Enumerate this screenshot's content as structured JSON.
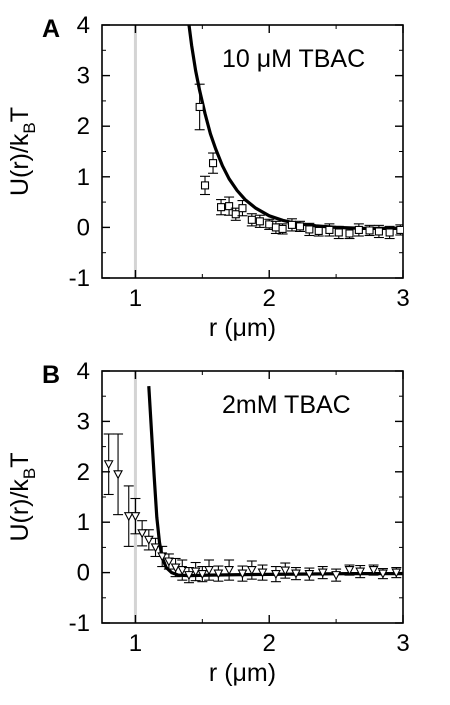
{
  "chart_data": [
    {
      "type": "scatter",
      "panel_label": "A",
      "annotation": "10 μM TBAC",
      "xlabel": "r (μm)",
      "ylabel_main": "U(r)/k",
      "ylabel_sub": "B",
      "ylabel_end": "T",
      "xlim": [
        0.75,
        3.0
      ],
      "ylim": [
        -1,
        4
      ],
      "xticks": [
        "1",
        "2",
        "3"
      ],
      "yticks": [
        "-1",
        "0",
        "1",
        "2",
        "3",
        "4"
      ],
      "reference_line_x": 1.0,
      "marker": "square",
      "series": [
        {
          "kind": "points",
          "x": [
            1.48,
            1.52,
            1.58,
            1.64,
            1.7,
            1.75,
            1.8,
            1.87,
            1.93,
            2.0,
            2.05,
            2.1,
            2.17,
            2.23,
            2.3,
            2.37,
            2.45,
            2.52,
            2.6,
            2.67,
            2.75,
            2.82,
            2.9,
            2.98
          ],
          "y": [
            2.38,
            0.83,
            1.27,
            0.4,
            0.42,
            0.26,
            0.38,
            0.15,
            0.12,
            0.06,
            0.0,
            -0.03,
            0.05,
            0.02,
            -0.04,
            -0.07,
            -0.05,
            -0.1,
            -0.12,
            -0.05,
            -0.06,
            -0.08,
            -0.1,
            -0.05
          ],
          "err": [
            0.45,
            0.18,
            0.2,
            0.15,
            0.18,
            0.12,
            0.15,
            0.12,
            0.12,
            0.1,
            0.12,
            0.1,
            0.12,
            0.1,
            0.12,
            0.1,
            0.12,
            0.12,
            0.1,
            0.12,
            0.1,
            0.12,
            0.12,
            0.1
          ]
        },
        {
          "kind": "fit",
          "x": [
            1.4,
            1.42,
            1.45,
            1.48,
            1.52,
            1.56,
            1.6,
            1.65,
            1.7,
            1.76,
            1.82,
            1.9,
            2.0,
            2.1,
            2.2,
            2.35,
            2.5,
            2.7,
            2.9,
            3.0
          ],
          "y": [
            4.0,
            3.6,
            3.1,
            2.7,
            2.25,
            1.85,
            1.55,
            1.22,
            0.96,
            0.73,
            0.55,
            0.38,
            0.23,
            0.14,
            0.08,
            0.03,
            0.0,
            -0.02,
            -0.02,
            -0.02
          ]
        }
      ]
    },
    {
      "type": "scatter",
      "panel_label": "B",
      "annotation": "2mM TBAC",
      "xlabel": "r (μm)",
      "ylabel_main": "U(r)/k",
      "ylabel_sub": "B",
      "ylabel_end": "T",
      "xlim": [
        0.75,
        3.0
      ],
      "ylim": [
        -1,
        4
      ],
      "xticks": [
        "1",
        "2",
        "3"
      ],
      "yticks": [
        "-1",
        "0",
        "1",
        "2",
        "3",
        "4"
      ],
      "reference_line_x": 1.0,
      "marker": "triangle-down",
      "series": [
        {
          "kind": "points",
          "x": [
            0.8,
            0.87,
            0.95,
            1.0,
            1.05,
            1.1,
            1.15,
            1.2,
            1.25,
            1.3,
            1.35,
            1.4,
            1.45,
            1.5,
            1.55,
            1.62,
            1.7,
            1.8,
            1.87,
            1.95,
            2.05,
            2.12,
            2.2,
            2.3,
            2.4,
            2.5,
            2.6,
            2.68,
            2.78,
            2.85,
            2.95
          ],
          "y": [
            2.15,
            1.95,
            1.12,
            1.12,
            0.78,
            0.65,
            0.5,
            0.32,
            0.22,
            0.1,
            0.05,
            -0.05,
            0.02,
            -0.03,
            0.05,
            -0.02,
            0.05,
            -0.02,
            0.05,
            0.0,
            -0.03,
            0.04,
            -0.02,
            -0.03,
            0.0,
            -0.05,
            0.05,
            0.02,
            0.05,
            -0.02,
            0.0
          ],
          "err": [
            0.6,
            0.8,
            0.6,
            0.35,
            0.25,
            0.2,
            0.18,
            0.2,
            0.15,
            0.18,
            0.2,
            0.15,
            0.18,
            0.15,
            0.2,
            0.15,
            0.2,
            0.15,
            0.18,
            0.15,
            0.15,
            0.15,
            0.12,
            0.12,
            0.12,
            0.12,
            0.1,
            0.12,
            0.1,
            0.1,
            0.1
          ]
        },
        {
          "kind": "fit",
          "x": [
            1.1,
            1.12,
            1.14,
            1.16,
            1.18,
            1.2,
            1.23,
            1.27,
            1.32,
            1.4,
            1.55,
            1.8,
            2.2,
            2.6,
            3.0
          ],
          "y": [
            3.7,
            2.8,
            1.9,
            1.1,
            0.6,
            0.3,
            0.1,
            0.0,
            -0.05,
            -0.06,
            -0.05,
            -0.04,
            -0.03,
            -0.02,
            -0.02
          ]
        }
      ]
    }
  ]
}
